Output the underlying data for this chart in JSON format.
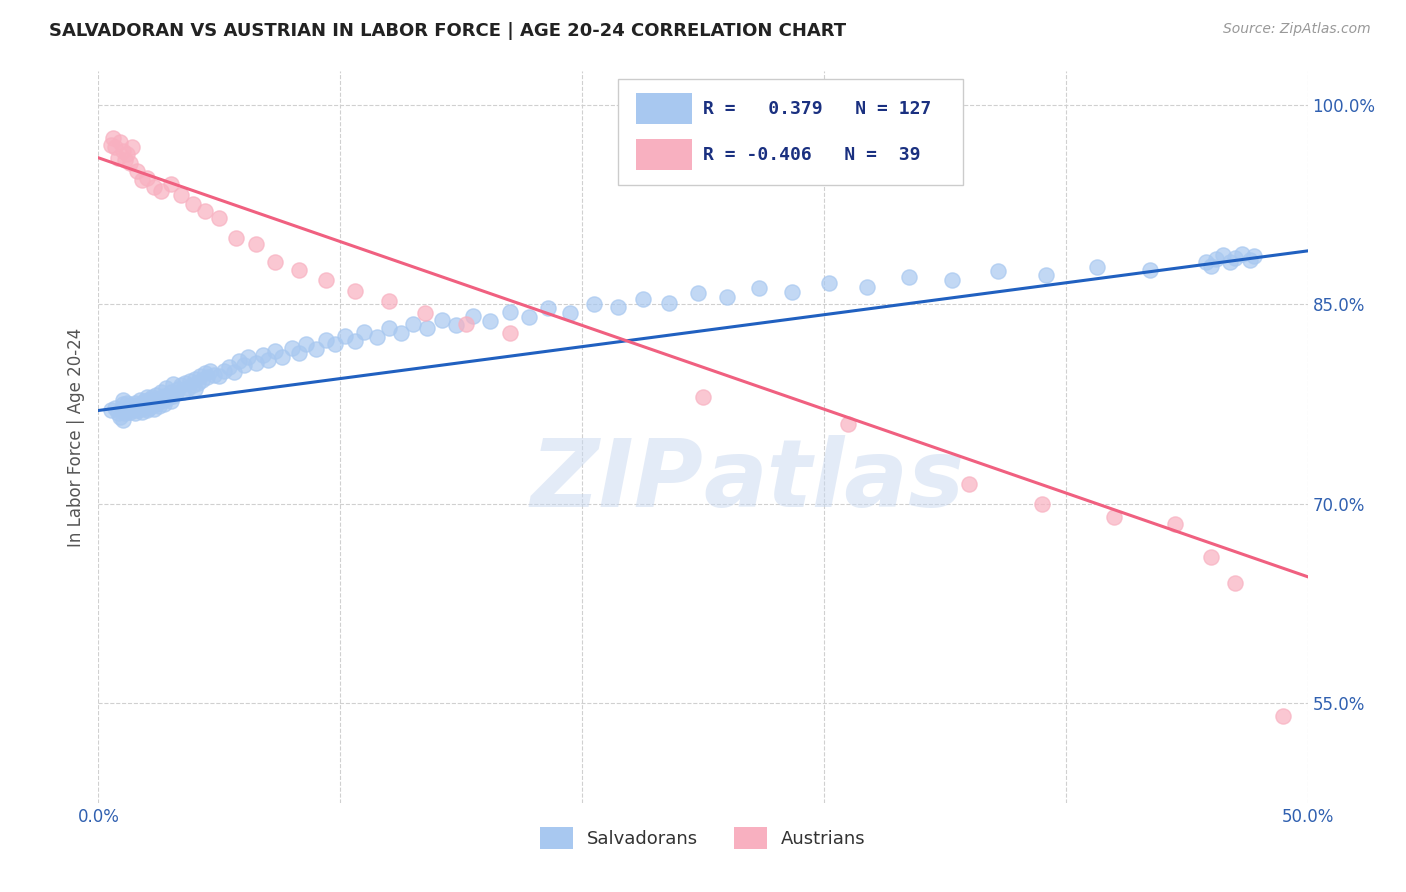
{
  "title": "SALVADORAN VS AUSTRIAN IN LABOR FORCE | AGE 20-24 CORRELATION CHART",
  "source_text": "Source: ZipAtlas.com",
  "ylabel": "In Labor Force | Age 20-24",
  "x_min": 0.0,
  "x_max": 0.5,
  "y_min": 0.475,
  "y_max": 1.025,
  "x_ticks": [
    0.0,
    0.1,
    0.2,
    0.3,
    0.4,
    0.5
  ],
  "x_tick_labels": [
    "0.0%",
    "",
    "",
    "",
    "",
    "50.0%"
  ],
  "y_tick_positions": [
    0.55,
    0.7,
    0.85,
    1.0
  ],
  "y_tick_labels": [
    "55.0%",
    "70.0%",
    "85.0%",
    "100.0%"
  ],
  "blue_R": 0.379,
  "blue_N": 127,
  "pink_R": -0.406,
  "pink_N": 39,
  "blue_color": "#a8c8f0",
  "pink_color": "#f8b0c0",
  "blue_line_color": "#2060c0",
  "pink_line_color": "#f06080",
  "legend_R_color": "#1a3080",
  "background_color": "#ffffff",
  "grid_color": "#d0d0d0",
  "title_color": "#222222",
  "blue_scatter_x": [
    0.005,
    0.007,
    0.008,
    0.009,
    0.01,
    0.01,
    0.01,
    0.01,
    0.011,
    0.011,
    0.012,
    0.012,
    0.013,
    0.013,
    0.014,
    0.014,
    0.015,
    0.015,
    0.015,
    0.016,
    0.016,
    0.017,
    0.017,
    0.018,
    0.018,
    0.019,
    0.019,
    0.02,
    0.02,
    0.02,
    0.021,
    0.021,
    0.022,
    0.022,
    0.023,
    0.023,
    0.024,
    0.024,
    0.025,
    0.025,
    0.026,
    0.026,
    0.027,
    0.027,
    0.028,
    0.028,
    0.029,
    0.03,
    0.03,
    0.031,
    0.031,
    0.032,
    0.033,
    0.034,
    0.035,
    0.036,
    0.037,
    0.038,
    0.039,
    0.04,
    0.04,
    0.041,
    0.042,
    0.043,
    0.044,
    0.045,
    0.046,
    0.048,
    0.05,
    0.052,
    0.054,
    0.056,
    0.058,
    0.06,
    0.062,
    0.065,
    0.068,
    0.07,
    0.073,
    0.076,
    0.08,
    0.083,
    0.086,
    0.09,
    0.094,
    0.098,
    0.102,
    0.106,
    0.11,
    0.115,
    0.12,
    0.125,
    0.13,
    0.136,
    0.142,
    0.148,
    0.155,
    0.162,
    0.17,
    0.178,
    0.186,
    0.195,
    0.205,
    0.215,
    0.225,
    0.236,
    0.248,
    0.26,
    0.273,
    0.287,
    0.302,
    0.318,
    0.335,
    0.353,
    0.372,
    0.392,
    0.413,
    0.435,
    0.458,
    0.46,
    0.462,
    0.465,
    0.468,
    0.47,
    0.473,
    0.476,
    0.478
  ],
  "blue_scatter_y": [
    0.77,
    0.772,
    0.768,
    0.765,
    0.763,
    0.77,
    0.775,
    0.778,
    0.771,
    0.768,
    0.772,
    0.776,
    0.769,
    0.774,
    0.77,
    0.773,
    0.768,
    0.771,
    0.776,
    0.77,
    0.774,
    0.771,
    0.778,
    0.769,
    0.775,
    0.772,
    0.777,
    0.77,
    0.775,
    0.78,
    0.772,
    0.778,
    0.774,
    0.78,
    0.771,
    0.777,
    0.775,
    0.782,
    0.773,
    0.779,
    0.777,
    0.784,
    0.775,
    0.781,
    0.779,
    0.787,
    0.78,
    0.777,
    0.784,
    0.781,
    0.79,
    0.783,
    0.786,
    0.789,
    0.784,
    0.791,
    0.787,
    0.792,
    0.789,
    0.786,
    0.794,
    0.791,
    0.796,
    0.793,
    0.798,
    0.795,
    0.8,
    0.797,
    0.796,
    0.8,
    0.803,
    0.799,
    0.807,
    0.804,
    0.81,
    0.806,
    0.812,
    0.808,
    0.815,
    0.81,
    0.817,
    0.813,
    0.82,
    0.816,
    0.823,
    0.82,
    0.826,
    0.822,
    0.829,
    0.825,
    0.832,
    0.828,
    0.835,
    0.832,
    0.838,
    0.834,
    0.841,
    0.837,
    0.844,
    0.84,
    0.847,
    0.843,
    0.85,
    0.848,
    0.854,
    0.851,
    0.858,
    0.855,
    0.862,
    0.859,
    0.866,
    0.863,
    0.87,
    0.868,
    0.875,
    0.872,
    0.878,
    0.876,
    0.882,
    0.879,
    0.884,
    0.887,
    0.882,
    0.885,
    0.888,
    0.883,
    0.886
  ],
  "pink_scatter_x": [
    0.005,
    0.006,
    0.007,
    0.008,
    0.009,
    0.01,
    0.011,
    0.012,
    0.013,
    0.014,
    0.016,
    0.018,
    0.02,
    0.023,
    0.026,
    0.03,
    0.034,
    0.039,
    0.044,
    0.05,
    0.057,
    0.065,
    0.073,
    0.083,
    0.094,
    0.106,
    0.12,
    0.135,
    0.152,
    0.17,
    0.25,
    0.31,
    0.36,
    0.39,
    0.42,
    0.445,
    0.46,
    0.47,
    0.49
  ],
  "pink_scatter_y": [
    0.97,
    0.975,
    0.968,
    0.96,
    0.972,
    0.965,
    0.958,
    0.963,
    0.956,
    0.968,
    0.95,
    0.943,
    0.945,
    0.938,
    0.935,
    0.94,
    0.932,
    0.925,
    0.92,
    0.915,
    0.9,
    0.895,
    0.882,
    0.876,
    0.868,
    0.86,
    0.852,
    0.843,
    0.835,
    0.828,
    0.78,
    0.76,
    0.715,
    0.7,
    0.69,
    0.685,
    0.66,
    0.64,
    0.54
  ],
  "blue_trend_x": [
    0.0,
    0.5
  ],
  "blue_trend_y": [
    0.77,
    0.89
  ],
  "pink_trend_x": [
    0.0,
    0.5
  ],
  "pink_trend_y": [
    0.96,
    0.645
  ]
}
